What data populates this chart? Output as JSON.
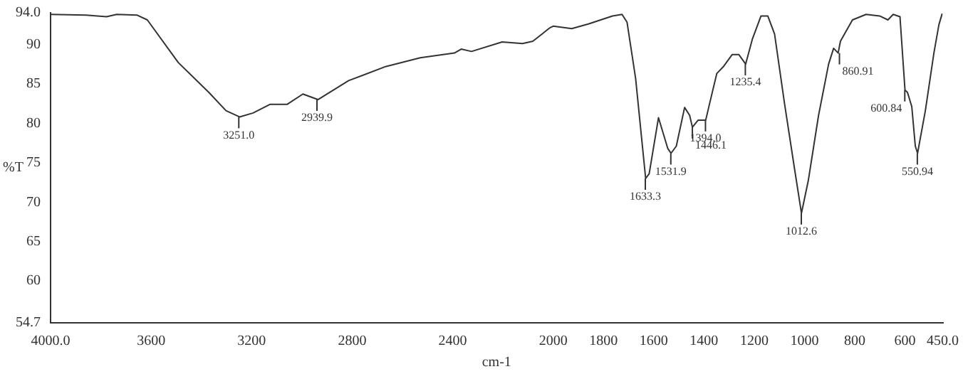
{
  "chart_data": {
    "type": "line",
    "xlabel": "cm-1",
    "ylabel": "%T",
    "xlim": [
      4000,
      450
    ],
    "ylim": [
      54.7,
      94
    ],
    "xticks": [
      {
        "value": 4000,
        "label": "4000.0"
      },
      3600,
      3200,
      2800,
      2400,
      2000,
      1800,
      1600,
      1400,
      1200,
      1000,
      800,
      600,
      {
        "value": 450,
        "label": "450.0"
      }
    ],
    "yticks": [
      {
        "value": 54.7,
        "label": "54.7"
      },
      60,
      65,
      70,
      75,
      80,
      85,
      90,
      {
        "value": 94,
        "label": "94.0"
      }
    ],
    "grid": false,
    "legend": false,
    "marker": "none",
    "line_style": "solid",
    "x": [
      4000,
      3859,
      3777,
      3737,
      3655,
      3615,
      3492,
      3370,
      3302,
      3248,
      3194,
      3126,
      3058,
      2996,
      2936,
      2814,
      2665,
      2529,
      2393,
      2366,
      2325,
      2203,
      2122,
      2081,
      2013,
      2000,
      1926,
      1858,
      1764,
      1726,
      1706,
      1672,
      1632,
      1618,
      1581,
      1544,
      1531,
      1510,
      1477,
      1457,
      1446,
      1423,
      1393,
      1376,
      1349,
      1322,
      1288,
      1261,
      1234,
      1207,
      1173,
      1146,
      1119,
      1079,
      1038,
      1012,
      985,
      944,
      904,
      884,
      866,
      857,
      809,
      755,
      701,
      668,
      647,
      620,
      600,
      590,
      573,
      559,
      550,
      519,
      485,
      465,
      452
    ],
    "series": [
      {
        "color": "#333333",
        "values": [
          93.8,
          93.7,
          93.5,
          93.8,
          93.7,
          93.1,
          87.7,
          83.9,
          81.6,
          80.8,
          81.3,
          82.4,
          82.4,
          83.7,
          83.0,
          85.4,
          87.2,
          88.3,
          88.9,
          89.4,
          89.1,
          90.3,
          90.1,
          90.4,
          92.1,
          92.3,
          92.0,
          92.6,
          93.6,
          93.8,
          92.8,
          85.7,
          73.0,
          73.6,
          80.7,
          76.8,
          76.2,
          77.1,
          82.0,
          81.0,
          79.5,
          80.4,
          80.4,
          82.7,
          86.3,
          87.2,
          88.7,
          88.7,
          87.5,
          90.7,
          93.6,
          93.6,
          91.3,
          82.4,
          73.9,
          68.6,
          72.7,
          81.0,
          87.5,
          89.5,
          88.9,
          90.4,
          93.1,
          93.8,
          93.6,
          93.1,
          93.8,
          93.5,
          84.2,
          83.9,
          82.1,
          77.1,
          76.2,
          81.6,
          88.9,
          92.5,
          93.9
        ]
      }
    ],
    "annotations": [
      {
        "text": "3251.0",
        "x": 3251,
        "y": 80.8
      },
      {
        "text": "2939.9",
        "x": 2939.9,
        "y": 83.0
      },
      {
        "text": "1633.3",
        "x": 1633.3,
        "y": 73.0
      },
      {
        "text": "1531.9",
        "x": 1531.9,
        "y": 76.2
      },
      {
        "text": "1446.1",
        "x": 1446.1,
        "y": 79.5
      },
      {
        "text": "1394.0",
        "x": 1394.0,
        "y": 80.4
      },
      {
        "text": "1235.4",
        "x": 1235.4,
        "y": 87.5
      },
      {
        "text": "1012.6",
        "x": 1012.6,
        "y": 68.6
      },
      {
        "text": "860.91",
        "x": 860.91,
        "y": 88.9
      },
      {
        "text": "600.84",
        "x": 600.84,
        "y": 84.2
      },
      {
        "text": "550.94",
        "x": 550.94,
        "y": 76.2
      }
    ]
  }
}
